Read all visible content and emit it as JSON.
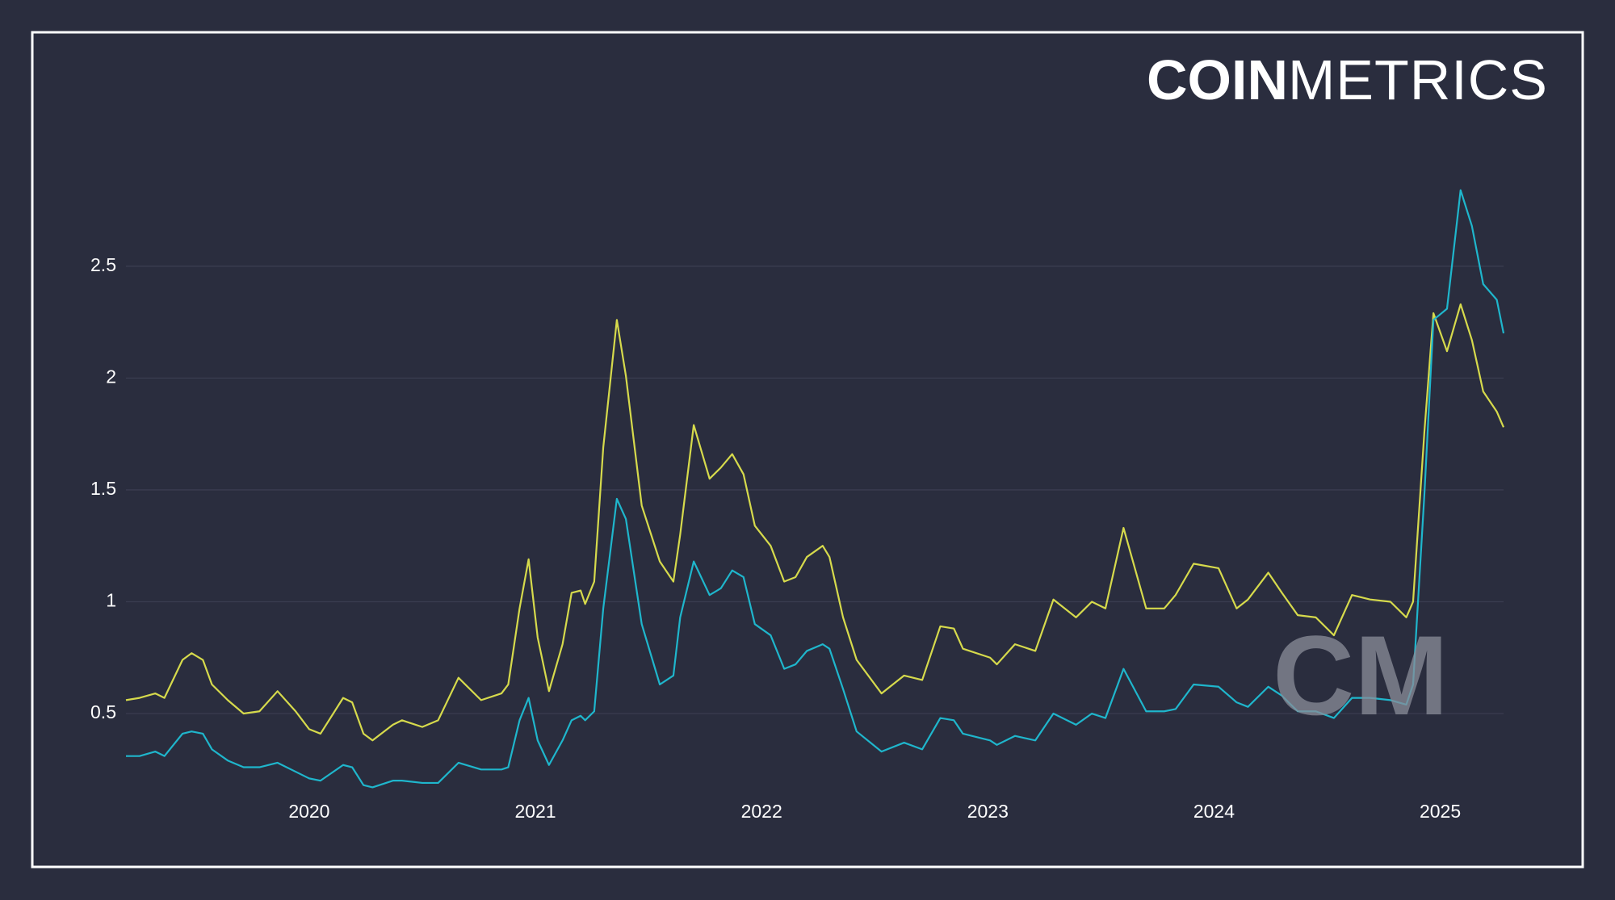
{
  "logo": {
    "bold": "COIN",
    "light": "METRICS"
  },
  "watermark": "CM",
  "chart_data": {
    "type": "line",
    "x": [
      2019.19,
      2019.25,
      2019.32,
      2019.36,
      2019.44,
      2019.48,
      2019.53,
      2019.57,
      2019.64,
      2019.71,
      2019.78,
      2019.86,
      2019.94,
      2020.0,
      2020.05,
      2020.15,
      2020.19,
      2020.24,
      2020.28,
      2020.37,
      2020.41,
      2020.5,
      2020.57,
      2020.66,
      2020.76,
      2020.85,
      2020.88,
      2020.93,
      2020.97,
      2021.01,
      2021.06,
      2021.12,
      2021.16,
      2021.2,
      2021.22,
      2021.26,
      2021.3,
      2021.36,
      2021.4,
      2021.47,
      2021.55,
      2021.61,
      2021.64,
      2021.7,
      2021.77,
      2021.82,
      2021.87,
      2021.92,
      2021.97,
      2022.04,
      2022.1,
      2022.15,
      2022.2,
      2022.27,
      2022.3,
      2022.36,
      2022.42,
      2022.53,
      2022.63,
      2022.71,
      2022.79,
      2022.85,
      2022.89,
      2023.01,
      2023.04,
      2023.12,
      2023.21,
      2023.29,
      2023.39,
      2023.46,
      2023.52,
      2023.6,
      2023.7,
      2023.78,
      2023.83,
      2023.91,
      2024.02,
      2024.1,
      2024.15,
      2024.24,
      2024.3,
      2024.37,
      2024.45,
      2024.53,
      2024.61,
      2024.69,
      2024.78,
      2024.85,
      2024.88,
      2024.93,
      2024.97,
      2025.03,
      2025.09,
      2025.14,
      2025.19,
      2025.25,
      2025.28
    ],
    "series": [
      {
        "color": "#d6da4c",
        "values": [
          0.56,
          0.57,
          0.59,
          0.57,
          0.74,
          0.77,
          0.74,
          0.63,
          0.56,
          0.5,
          0.51,
          0.6,
          0.51,
          0.43,
          0.41,
          0.57,
          0.55,
          0.41,
          0.38,
          0.45,
          0.47,
          0.44,
          0.47,
          0.66,
          0.56,
          0.59,
          0.63,
          0.97,
          1.19,
          0.84,
          0.6,
          0.81,
          1.04,
          1.05,
          0.99,
          1.09,
          1.69,
          2.26,
          2.01,
          1.43,
          1.18,
          1.09,
          1.3,
          1.79,
          1.55,
          1.6,
          1.66,
          1.57,
          1.34,
          1.25,
          1.09,
          1.11,
          1.2,
          1.25,
          1.2,
          0.93,
          0.74,
          0.59,
          0.67,
          0.65,
          0.89,
          0.88,
          0.79,
          0.75,
          0.72,
          0.81,
          0.78,
          1.01,
          0.93,
          1.0,
          0.97,
          1.33,
          0.97,
          0.97,
          1.03,
          1.17,
          1.15,
          0.97,
          1.01,
          1.13,
          1.04,
          0.94,
          0.93,
          0.85,
          1.03,
          1.01,
          1.0,
          0.93,
          1.0,
          1.76,
          2.29,
          2.12,
          2.33,
          2.17,
          1.94,
          1.85,
          1.78
        ]
      },
      {
        "color": "#1fb6cc",
        "values": [
          0.31,
          0.31,
          0.33,
          0.31,
          0.41,
          0.42,
          0.41,
          0.34,
          0.29,
          0.26,
          0.26,
          0.28,
          0.24,
          0.21,
          0.2,
          0.27,
          0.26,
          0.18,
          0.17,
          0.2,
          0.2,
          0.19,
          0.19,
          0.28,
          0.25,
          0.25,
          0.26,
          0.47,
          0.57,
          0.38,
          0.27,
          0.38,
          0.47,
          0.49,
          0.47,
          0.51,
          0.97,
          1.46,
          1.37,
          0.9,
          0.63,
          0.67,
          0.93,
          1.18,
          1.03,
          1.06,
          1.14,
          1.11,
          0.9,
          0.85,
          0.7,
          0.72,
          0.78,
          0.81,
          0.79,
          0.61,
          0.42,
          0.33,
          0.37,
          0.34,
          0.48,
          0.47,
          0.41,
          0.38,
          0.36,
          0.4,
          0.38,
          0.5,
          0.45,
          0.5,
          0.48,
          0.7,
          0.51,
          0.51,
          0.52,
          0.63,
          0.62,
          0.55,
          0.53,
          0.62,
          0.58,
          0.51,
          0.51,
          0.48,
          0.57,
          0.57,
          0.56,
          0.54,
          0.63,
          1.48,
          2.26,
          2.31,
          2.84,
          2.68,
          2.42,
          2.35,
          2.2
        ]
      }
    ],
    "xlim": [
      2019.19,
      2025.28
    ],
    "xticks": [
      2020,
      2021,
      2022,
      2023,
      2024,
      2025
    ],
    "ylim": [
      0.15,
      2.9
    ],
    "yticks": [
      0.5,
      1,
      1.5,
      2,
      2.5
    ],
    "grid": true
  }
}
